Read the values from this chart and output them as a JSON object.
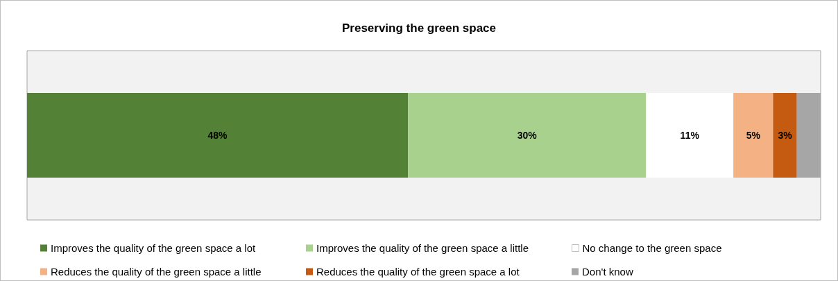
{
  "chart_data": {
    "type": "bar",
    "orientation": "horizontal",
    "stacked": true,
    "title": "Preserving the green space",
    "categories": [
      null
    ],
    "series": [
      {
        "name": "Improves the quality of the green space a lot",
        "color": "#538135",
        "values": [
          48
        ],
        "value_labels": [
          "48%"
        ]
      },
      {
        "name": "Improves the quality of the green space a little",
        "color": "#a9d18e",
        "values": [
          30
        ],
        "value_labels": [
          "30%"
        ]
      },
      {
        "name": "No change to the green space",
        "color": "#ffffff",
        "values": [
          11
        ],
        "value_labels": [
          "11%"
        ]
      },
      {
        "name": "Reduces the quality of the green space a little",
        "color": "#f4b183",
        "values": [
          5
        ],
        "value_labels": [
          "5%"
        ]
      },
      {
        "name": "Reduces the quality of the green space a lot",
        "color": "#c55a11",
        "values": [
          3
        ],
        "value_labels": [
          "3%"
        ]
      },
      {
        "name": "Don't know",
        "color": "#a6a6a6",
        "values": [
          3
        ],
        "value_labels": [
          null
        ]
      }
    ],
    "legend": "bottom"
  }
}
